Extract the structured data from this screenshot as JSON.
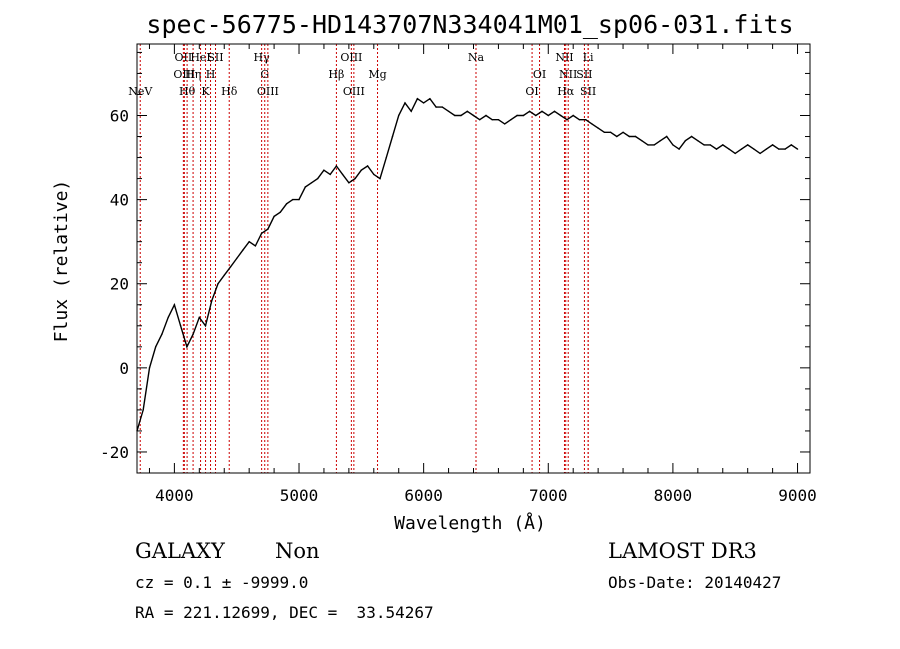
{
  "chart_data": {
    "type": "line",
    "title": "spec-56775-HD143707N334041M01_sp06-031.fits",
    "xlabel": "Wavelength (Å)",
    "ylabel": "Flux (relative)",
    "xlim": [
      3700,
      9100
    ],
    "ylim": [
      -25,
      77
    ],
    "xticks": [
      4000,
      5000,
      6000,
      7000,
      8000,
      9000
    ],
    "yticks": [
      -20,
      0,
      20,
      40,
      60
    ],
    "series": [
      {
        "name": "flux",
        "color": "#000000",
        "x": [
          3700,
          3750,
          3800,
          3850,
          3900,
          3950,
          4000,
          4050,
          4100,
          4150,
          4200,
          4250,
          4300,
          4350,
          4400,
          4450,
          4500,
          4550,
          4600,
          4650,
          4700,
          4750,
          4800,
          4850,
          4900,
          4950,
          5000,
          5050,
          5100,
          5150,
          5200,
          5250,
          5300,
          5350,
          5400,
          5450,
          5500,
          5550,
          5600,
          5650,
          5700,
          5750,
          5800,
          5850,
          5900,
          5950,
          6000,
          6050,
          6100,
          6150,
          6200,
          6250,
          6300,
          6350,
          6400,
          6450,
          6500,
          6550,
          6600,
          6650,
          6700,
          6750,
          6800,
          6850,
          6900,
          6950,
          7000,
          7050,
          7100,
          7150,
          7200,
          7250,
          7300,
          7350,
          7400,
          7450,
          7500,
          7550,
          7600,
          7650,
          7700,
          7750,
          7800,
          7850,
          7900,
          7950,
          8000,
          8050,
          8100,
          8150,
          8200,
          8250,
          8300,
          8350,
          8400,
          8450,
          8500,
          8550,
          8600,
          8650,
          8700,
          8750,
          8800,
          8850,
          8900,
          8950,
          9000
        ],
        "values": [
          -15,
          -10,
          0,
          5,
          8,
          12,
          15,
          10,
          5,
          8,
          12,
          10,
          16,
          20,
          22,
          24,
          26,
          28,
          30,
          29,
          32,
          33,
          36,
          37,
          39,
          40,
          40,
          43,
          44,
          45,
          47,
          46,
          48,
          46,
          44,
          45,
          47,
          48,
          46,
          45,
          50,
          55,
          60,
          63,
          61,
          64,
          63,
          64,
          62,
          62,
          61,
          60,
          60,
          61,
          60,
          59,
          60,
          59,
          59,
          58,
          59,
          60,
          60,
          61,
          60,
          61,
          60,
          61,
          60,
          59,
          60,
          59,
          59,
          58,
          57,
          56,
          56,
          55,
          56,
          55,
          55,
          54,
          53,
          53,
          54,
          55,
          53,
          52,
          54,
          55,
          54,
          53,
          53,
          52,
          53,
          52,
          51,
          52,
          53,
          52,
          51,
          52,
          53,
          52,
          52,
          53,
          52
        ]
      }
    ],
    "lines": [
      {
        "name": "NeV",
        "x": 3726,
        "label_row": 2
      },
      {
        "name": "OII",
        "x": 4072,
        "label_row": 0
      },
      {
        "name": "OIII",
        "x": 4080,
        "label_row": 1
      },
      {
        "name": "Hθ",
        "x": 4102,
        "label_row": 2
      },
      {
        "name": "Hη",
        "x": 4150,
        "label_row": 1
      },
      {
        "name": "HeI",
        "x": 4210,
        "label_row": 0
      },
      {
        "name": "K",
        "x": 4250,
        "label_row": 2
      },
      {
        "name": "H",
        "x": 4290,
        "label_row": 1
      },
      {
        "name": "SII",
        "x": 4330,
        "label_row": 0
      },
      {
        "name": "Hδ",
        "x": 4440,
        "label_row": 2
      },
      {
        "name": "Hγ",
        "x": 4700,
        "label_row": 0
      },
      {
        "name": "G",
        "x": 4725,
        "label_row": 1
      },
      {
        "name": "OIII",
        "x": 4750,
        "label_row": 2
      },
      {
        "name": "Hβ",
        "x": 5300,
        "label_row": 1
      },
      {
        "name": "OIII",
        "x": 5420,
        "label_row": 0
      },
      {
        "name": "OIII",
        "x": 5440,
        "label_row": 2
      },
      {
        "name": "Mg",
        "x": 5630,
        "label_row": 1
      },
      {
        "name": "Na",
        "x": 6420,
        "label_row": 0
      },
      {
        "name": "OI",
        "x": 6870,
        "label_row": 2
      },
      {
        "name": "OI",
        "x": 6930,
        "label_row": 1
      },
      {
        "name": "NII",
        "x": 7130,
        "label_row": 0
      },
      {
        "name": "NII",
        "x": 7160,
        "label_row": 1
      },
      {
        "name": "Hα",
        "x": 7140,
        "label_row": 2
      },
      {
        "name": "SII",
        "x": 7290,
        "label_row": 1
      },
      {
        "name": "Li",
        "x": 7320,
        "label_row": 0
      },
      {
        "name": "SII",
        "x": 7320,
        "label_row": 2
      }
    ]
  },
  "info": {
    "class": "GALAXY",
    "subclass": "Non",
    "survey": "LAMOST DR3",
    "cz": "cz = 0.1 ± -9999.0",
    "obs_date": "Obs-Date: 20140427",
    "radec": "RA = 221.12699, DEC =  33.54267"
  }
}
